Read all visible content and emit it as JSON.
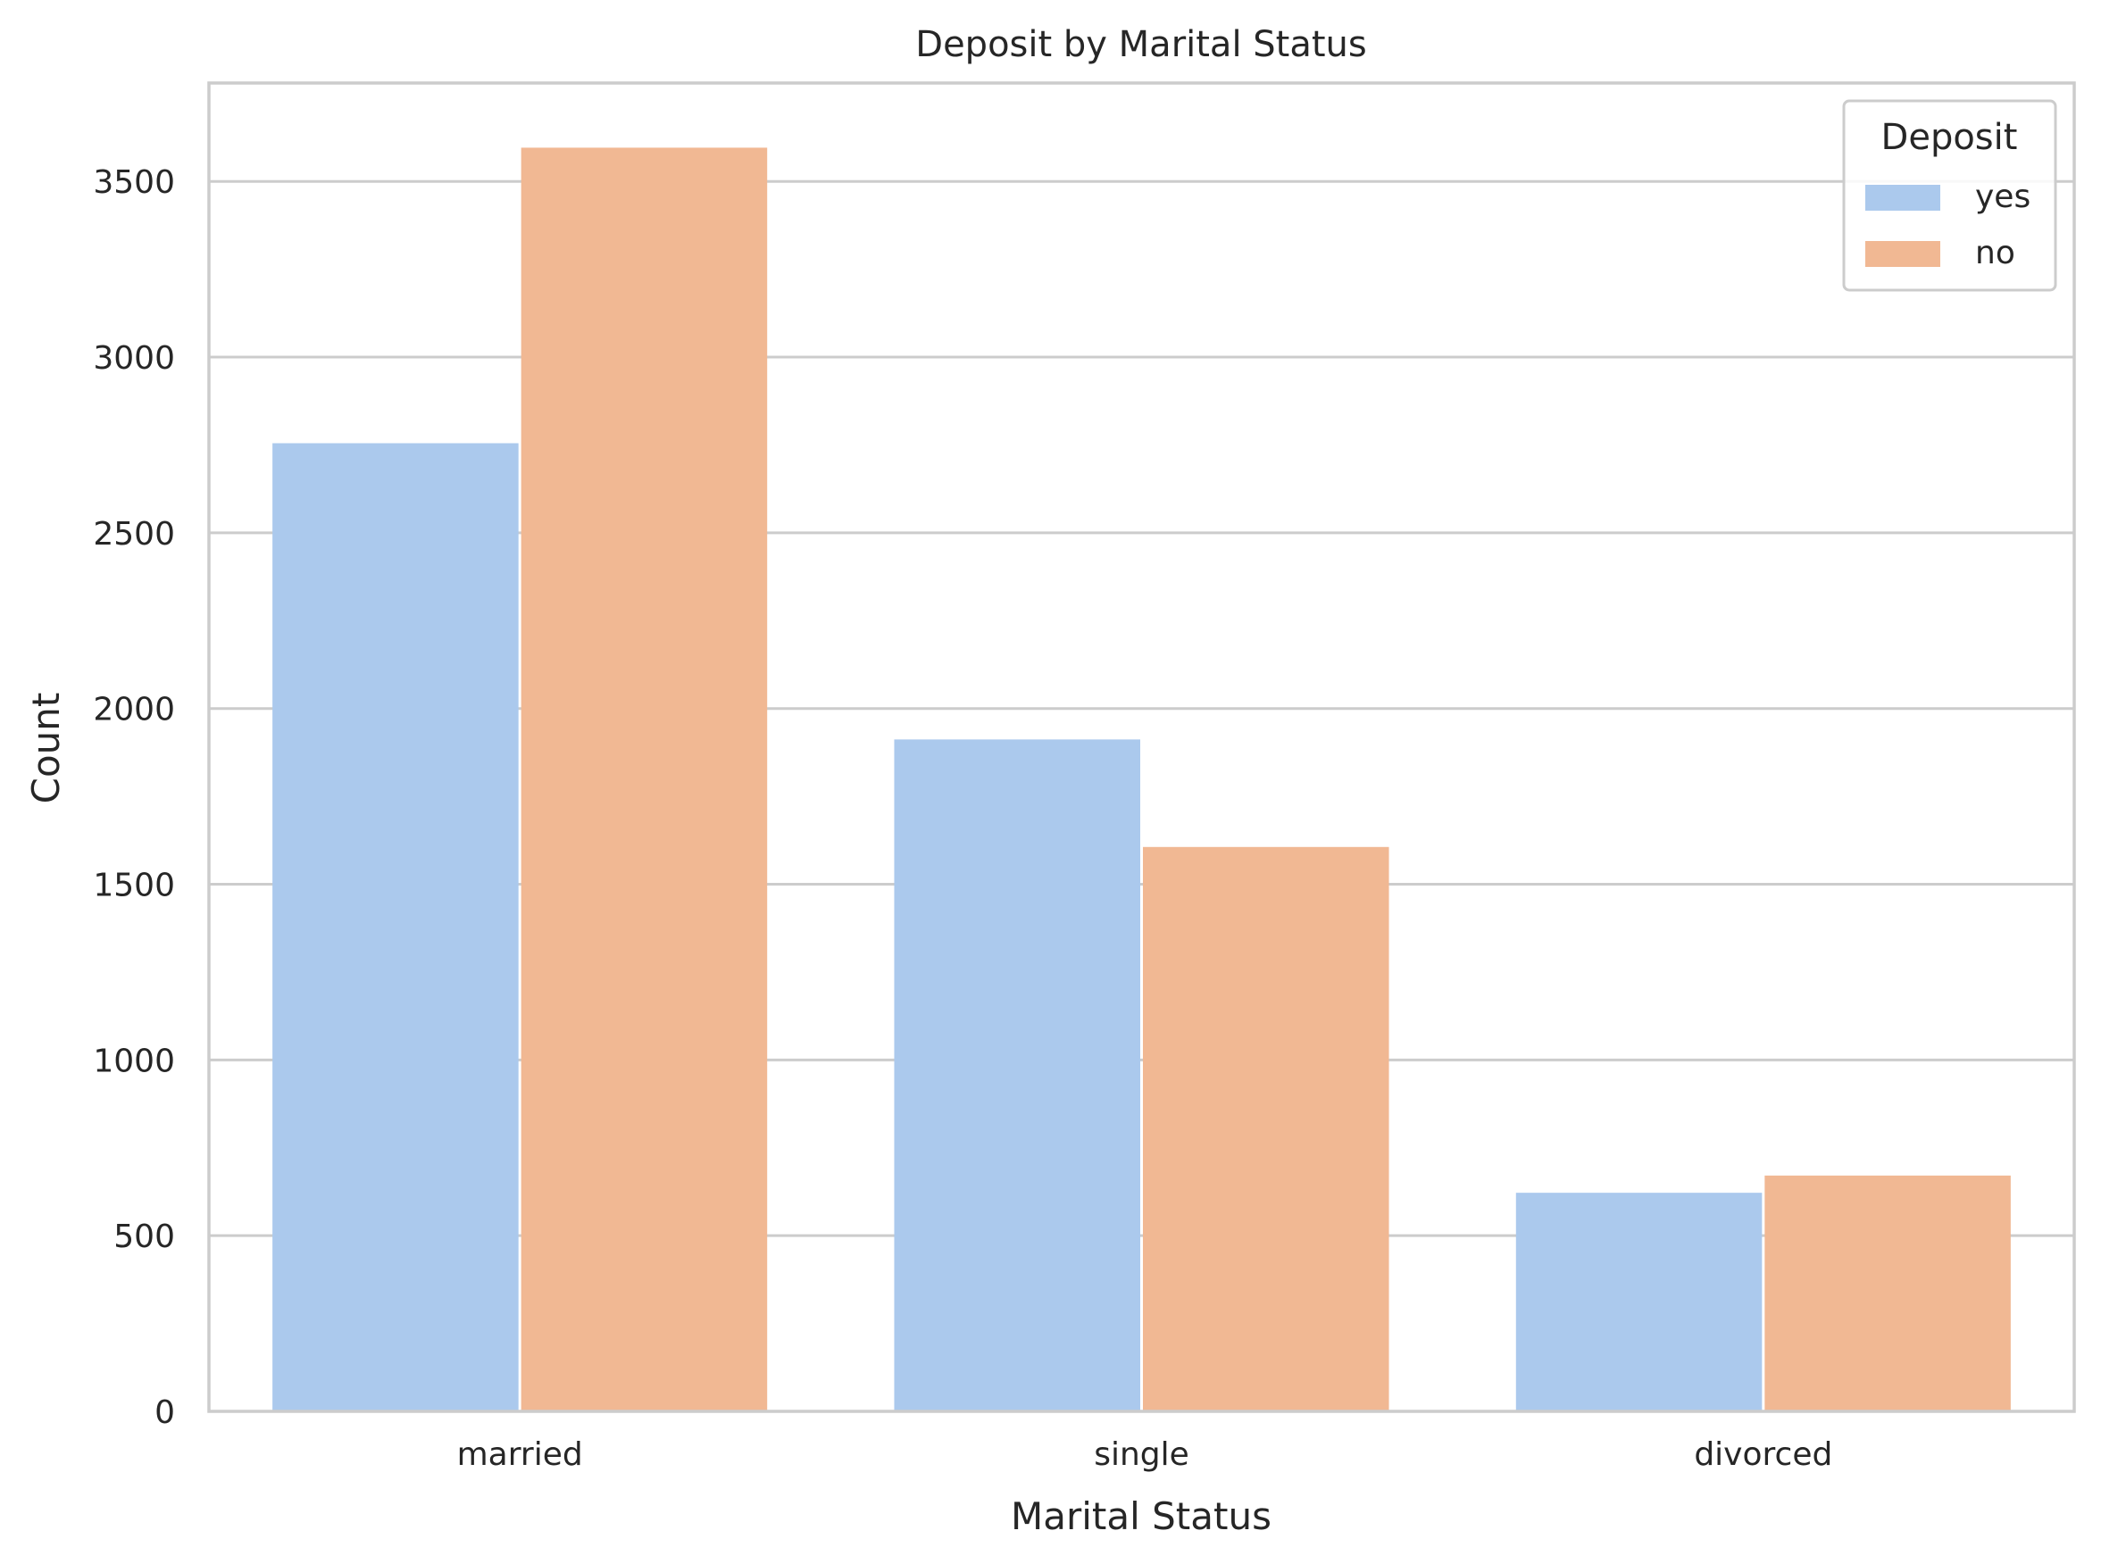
{
  "chart_data": {
    "type": "bar",
    "title": "Deposit by Marital Status",
    "xlabel": "Marital Status",
    "ylabel": "Count",
    "categories": [
      "married",
      "single",
      "divorced"
    ],
    "series": [
      {
        "name": "yes",
        "values": [
          2755,
          1912,
          622
        ],
        "color": "#abc9ed"
      },
      {
        "name": "no",
        "values": [
          3596,
          1606,
          671
        ],
        "color": "#f1b893"
      }
    ],
    "ylim": [
      0,
      3780
    ],
    "yticks": [
      0,
      500,
      1000,
      1500,
      2000,
      2500,
      3000,
      3500
    ],
    "grid": "horizontal",
    "legend": {
      "title": "Deposit",
      "position": "top-right"
    },
    "spine_color": "#cccccc",
    "grid_color": "#cccccc"
  }
}
